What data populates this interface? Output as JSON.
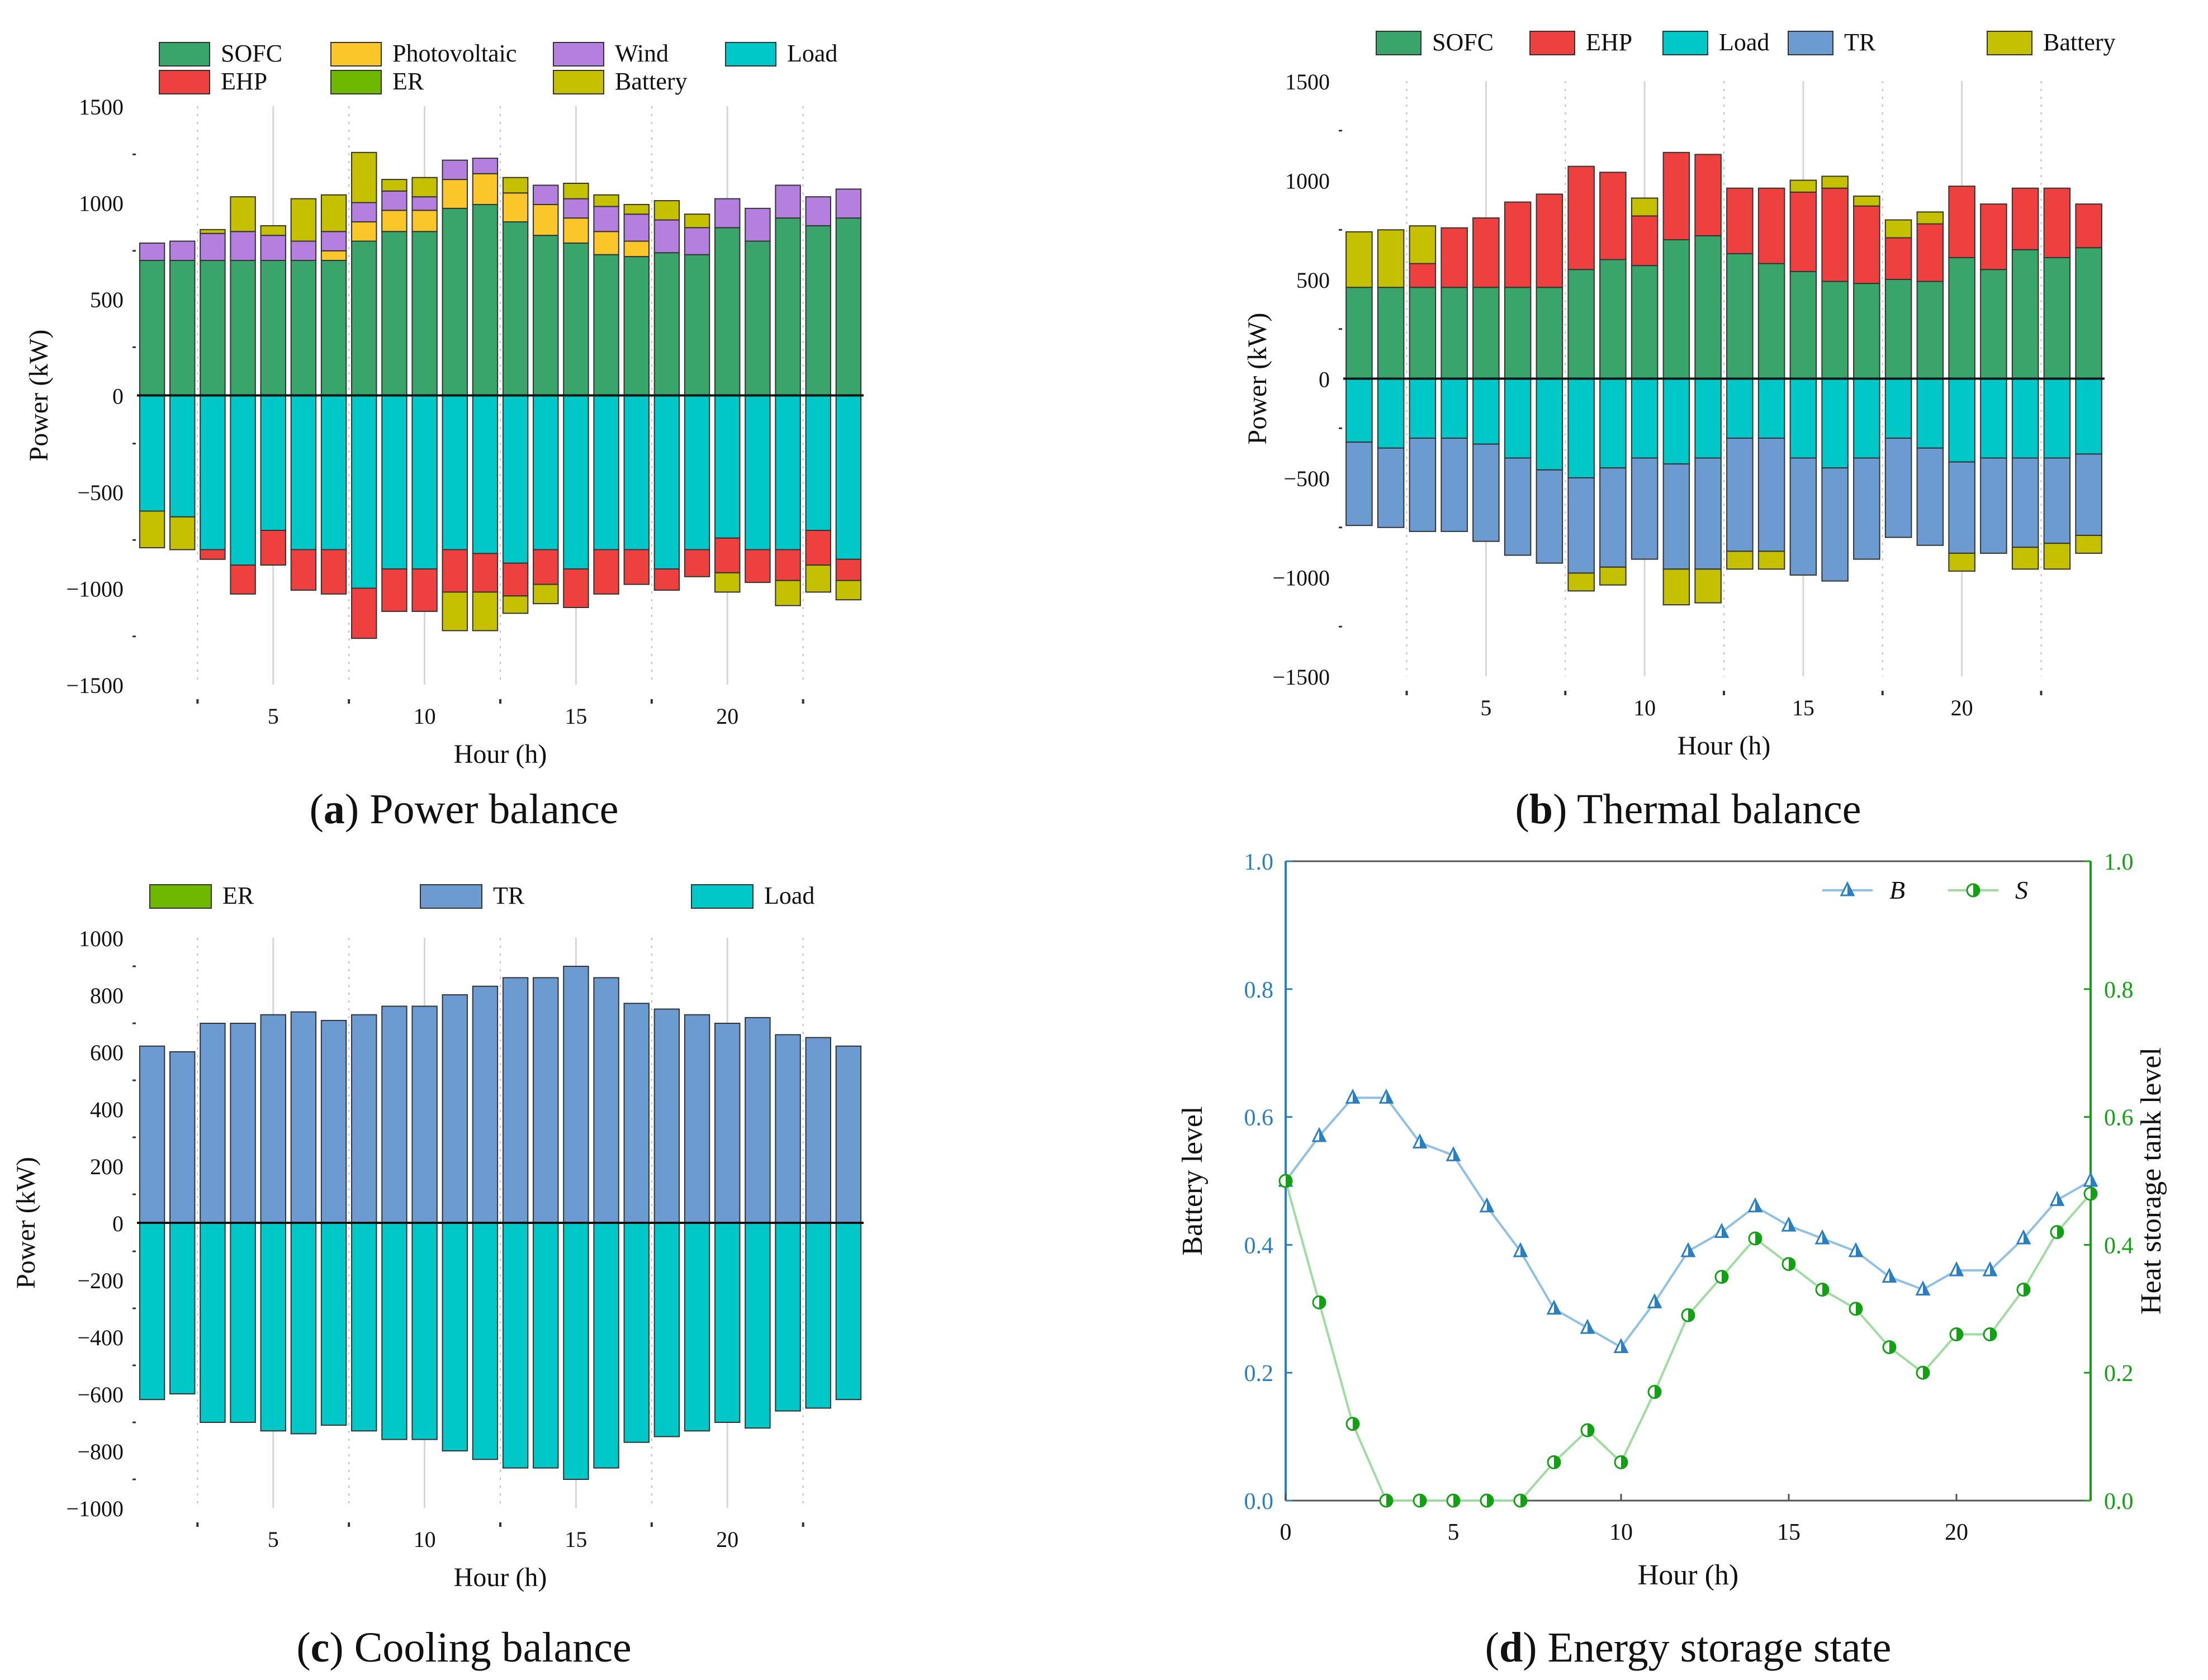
{
  "panels": [
    {
      "id": "a",
      "caption_letter": "a",
      "caption_text": "Power balance",
      "chart_data": {
        "type": "bar",
        "stacked": true,
        "title": "",
        "xlabel": "Hour (h)",
        "ylabel": "Power (kW)",
        "ylim": [
          -1500,
          1500
        ],
        "yticks": [
          -1500,
          -1000,
          -500,
          0,
          500,
          1000,
          1500
        ],
        "xlim": [
          0.5,
          24.5
        ],
        "xticks": [
          5,
          10,
          15,
          20
        ],
        "hours": [
          1,
          2,
          3,
          4,
          5,
          6,
          7,
          8,
          9,
          10,
          11,
          12,
          13,
          14,
          15,
          16,
          17,
          18,
          19,
          20,
          21,
          22,
          23,
          24
        ],
        "legend": [
          {
            "name": "SOFC",
            "color": "#3aa56b"
          },
          {
            "name": "Photovoltaic",
            "color": "#fbc62a"
          },
          {
            "name": "Wind",
            "color": "#b57fe0"
          },
          {
            "name": "Load",
            "color": "#00c8c8"
          },
          {
            "name": "EHP",
            "color": "#ef4040"
          },
          {
            "name": "ER",
            "color": "#6eb800"
          },
          {
            "name": "Battery",
            "color": "#c5c000"
          }
        ],
        "positive": [
          {
            "name": "SOFC",
            "color": "#3aa56b",
            "values": [
              700,
              700,
              700,
              700,
              700,
              700,
              700,
              800,
              850,
              850,
              970,
              990,
              900,
              830,
              790,
              730,
              720,
              740,
              730,
              870,
              800,
              920,
              880,
              920
            ]
          },
          {
            "name": "Photovoltaic",
            "color": "#fbc62a",
            "values": [
              0,
              0,
              0,
              0,
              0,
              0,
              50,
              100,
              110,
              110,
              150,
              160,
              150,
              160,
              130,
              120,
              80,
              0,
              0,
              0,
              0,
              0,
              0,
              0
            ]
          },
          {
            "name": "Wind",
            "color": "#b57fe0",
            "values": [
              90,
              100,
              140,
              150,
              130,
              100,
              100,
              100,
              100,
              70,
              100,
              80,
              0,
              100,
              100,
              130,
              140,
              170,
              140,
              150,
              170,
              170,
              150,
              150
            ]
          },
          {
            "name": "Battery",
            "color": "#c5c000",
            "values": [
              0,
              0,
              20,
              180,
              50,
              220,
              190,
              260,
              60,
              100,
              0,
              0,
              80,
              0,
              80,
              60,
              50,
              100,
              70,
              0,
              0,
              0,
              0,
              0
            ]
          }
        ],
        "negative": [
          {
            "name": "Load",
            "color": "#00c8c8",
            "values": [
              -600,
              -630,
              -800,
              -880,
              -700,
              -800,
              -800,
              -1000,
              -900,
              -900,
              -800,
              -820,
              -870,
              -800,
              -900,
              -800,
              -800,
              -900,
              -800,
              -740,
              -800,
              -800,
              -700,
              -850
            ]
          },
          {
            "name": "EHP",
            "color": "#ef4040",
            "values": [
              0,
              0,
              -50,
              -150,
              -180,
              -210,
              -230,
              -260,
              -220,
              -220,
              -220,
              -200,
              -170,
              -180,
              -200,
              -230,
              -180,
              -110,
              -140,
              -180,
              -170,
              -160,
              -180,
              -110
            ]
          },
          {
            "name": "Battery",
            "color": "#c5c000",
            "values": [
              -190,
              -170,
              0,
              0,
              0,
              0,
              0,
              0,
              0,
              0,
              -200,
              -200,
              -90,
              -100,
              0,
              0,
              0,
              0,
              0,
              -100,
              0,
              -130,
              -140,
              -100
            ]
          }
        ]
      }
    },
    {
      "id": "b",
      "caption_letter": "b",
      "caption_text": "Thermal balance",
      "chart_data": {
        "type": "bar",
        "stacked": true,
        "title": "",
        "xlabel": "Hour (h)",
        "ylabel": "Power (kW)",
        "ylim": [
          -1500,
          1500
        ],
        "yticks": [
          -1500,
          -1000,
          -500,
          0,
          500,
          1000,
          1500
        ],
        "xlim": [
          0.5,
          24.5
        ],
        "xticks": [
          5,
          10,
          15,
          20
        ],
        "hours": [
          1,
          2,
          3,
          4,
          5,
          6,
          7,
          8,
          9,
          10,
          11,
          12,
          13,
          14,
          15,
          16,
          17,
          18,
          19,
          20,
          21,
          22,
          23,
          24
        ],
        "legend": [
          {
            "name": "SOFC",
            "color": "#3aa56b"
          },
          {
            "name": "EHP",
            "color": "#ef4040"
          },
          {
            "name": "Load",
            "color": "#00c8c8"
          },
          {
            "name": "TR",
            "color": "#6c9bd2"
          },
          {
            "name": "Battery",
            "color": "#c5c000"
          }
        ],
        "positive": [
          {
            "name": "SOFC",
            "color": "#3aa56b",
            "values": [
              460,
              460,
              460,
              460,
              460,
              460,
              460,
              550,
              600,
              570,
              700,
              720,
              630,
              580,
              540,
              490,
              480,
              500,
              490,
              610,
              550,
              650,
              610,
              660
            ]
          },
          {
            "name": "EHP",
            "color": "#ef4040",
            "values": [
              0,
              0,
              120,
              300,
              350,
              430,
              470,
              520,
              440,
              250,
              440,
              410,
              330,
              380,
              400,
              470,
              390,
              210,
              290,
              360,
              330,
              310,
              350,
              220
            ]
          },
          {
            "name": "Battery",
            "color": "#c5c000",
            "values": [
              280,
              290,
              190,
              0,
              0,
              0,
              0,
              0,
              0,
              90,
              0,
              0,
              0,
              0,
              60,
              60,
              50,
              90,
              60,
              0,
              0,
              0,
              0,
              0
            ]
          }
        ],
        "negative": [
          {
            "name": "Load",
            "color": "#00c8c8",
            "values": [
              -320,
              -350,
              -300,
              -300,
              -330,
              -400,
              -460,
              -500,
              -450,
              -400,
              -430,
              -400,
              -300,
              -300,
              -400,
              -450,
              -400,
              -300,
              -350,
              -420,
              -400,
              -400,
              -400,
              -380
            ]
          },
          {
            "name": "TR",
            "color": "#6c9bd2",
            "values": [
              -420,
              -400,
              -470,
              -470,
              -490,
              -490,
              -470,
              -480,
              -500,
              -510,
              -530,
              -560,
              -570,
              -570,
              -590,
              -570,
              -510,
              -500,
              -490,
              -460,
              -480,
              -450,
              -430,
              -410
            ]
          },
          {
            "name": "Battery",
            "color": "#c5c000",
            "values": [
              0,
              0,
              0,
              0,
              0,
              0,
              0,
              -90,
              -90,
              0,
              -180,
              -170,
              -90,
              -90,
              0,
              0,
              0,
              0,
              0,
              -90,
              0,
              -110,
              -130,
              -90
            ]
          }
        ]
      }
    },
    {
      "id": "c",
      "caption_letter": "c",
      "caption_text": "Cooling balance",
      "chart_data": {
        "type": "bar",
        "stacked": true,
        "title": "",
        "xlabel": "Hour (h)",
        "ylabel": "Power (kW)",
        "ylim": [
          -1000,
          1000
        ],
        "yticks": [
          -1000,
          -800,
          -600,
          -400,
          -200,
          0,
          200,
          400,
          600,
          800,
          1000
        ],
        "xlim": [
          0.5,
          24.5
        ],
        "xticks": [
          5,
          10,
          15,
          20
        ],
        "hours": [
          1,
          2,
          3,
          4,
          5,
          6,
          7,
          8,
          9,
          10,
          11,
          12,
          13,
          14,
          15,
          16,
          17,
          18,
          19,
          20,
          21,
          22,
          23,
          24
        ],
        "legend": [
          {
            "name": "ER",
            "color": "#6eb800"
          },
          {
            "name": "TR",
            "color": "#6c9bd2"
          },
          {
            "name": "Load",
            "color": "#00c8c8"
          }
        ],
        "positive": [
          {
            "name": "TR",
            "color": "#6c9bd2",
            "values": [
              620,
              600,
              700,
              700,
              730,
              740,
              710,
              730,
              760,
              760,
              800,
              830,
              860,
              860,
              900,
              860,
              770,
              750,
              730,
              700,
              720,
              660,
              650,
              620
            ]
          }
        ],
        "negative": [
          {
            "name": "Load",
            "color": "#00c8c8",
            "values": [
              -620,
              -600,
              -700,
              -700,
              -730,
              -740,
              -710,
              -730,
              -760,
              -760,
              -800,
              -830,
              -860,
              -860,
              -900,
              -860,
              -770,
              -750,
              -730,
              -700,
              -720,
              -660,
              -650,
              -620
            ]
          }
        ]
      }
    },
    {
      "id": "d",
      "caption_letter": "d",
      "caption_text": "Energy storage state",
      "chart_data": {
        "type": "line",
        "title": "",
        "xlabel": "Hour (h)",
        "ylabel": "Battery level",
        "y2label": "Heat storage tank level",
        "xlim": [
          0,
          24
        ],
        "ylim": [
          0,
          1.0
        ],
        "xticks": [
          0,
          5,
          10,
          15,
          20
        ],
        "yticks": [
          "0.0",
          "0.2",
          "0.4",
          "0.6",
          "0.8",
          "1.0"
        ],
        "x": [
          0,
          1,
          2,
          3,
          4,
          5,
          6,
          7,
          8,
          9,
          10,
          11,
          12,
          13,
          14,
          15,
          16,
          17,
          18,
          19,
          20,
          21,
          22,
          23,
          24
        ],
        "series": [
          {
            "name": "B",
            "axis": "left",
            "color": "#2a7fc1",
            "line_color": "#8fc1e8",
            "marker": "triangle",
            "values": [
              0.5,
              0.57,
              0.63,
              0.63,
              0.56,
              0.54,
              0.46,
              0.39,
              0.3,
              0.27,
              0.24,
              0.31,
              0.39,
              0.42,
              0.46,
              0.43,
              0.41,
              0.39,
              0.35,
              0.33,
              0.36,
              0.36,
              0.41,
              0.47,
              0.5
            ]
          },
          {
            "name": "S",
            "axis": "right",
            "color": "#14a014",
            "line_color": "#9fdc9f",
            "marker": "half-circle",
            "values": [
              0.5,
              0.31,
              0.12,
              0.0,
              0.0,
              0.0,
              0.0,
              0.0,
              0.06,
              0.11,
              0.06,
              0.17,
              0.29,
              0.35,
              0.41,
              0.37,
              0.33,
              0.3,
              0.24,
              0.2,
              0.26,
              0.26,
              0.33,
              0.42,
              0.48
            ]
          }
        ]
      }
    }
  ]
}
